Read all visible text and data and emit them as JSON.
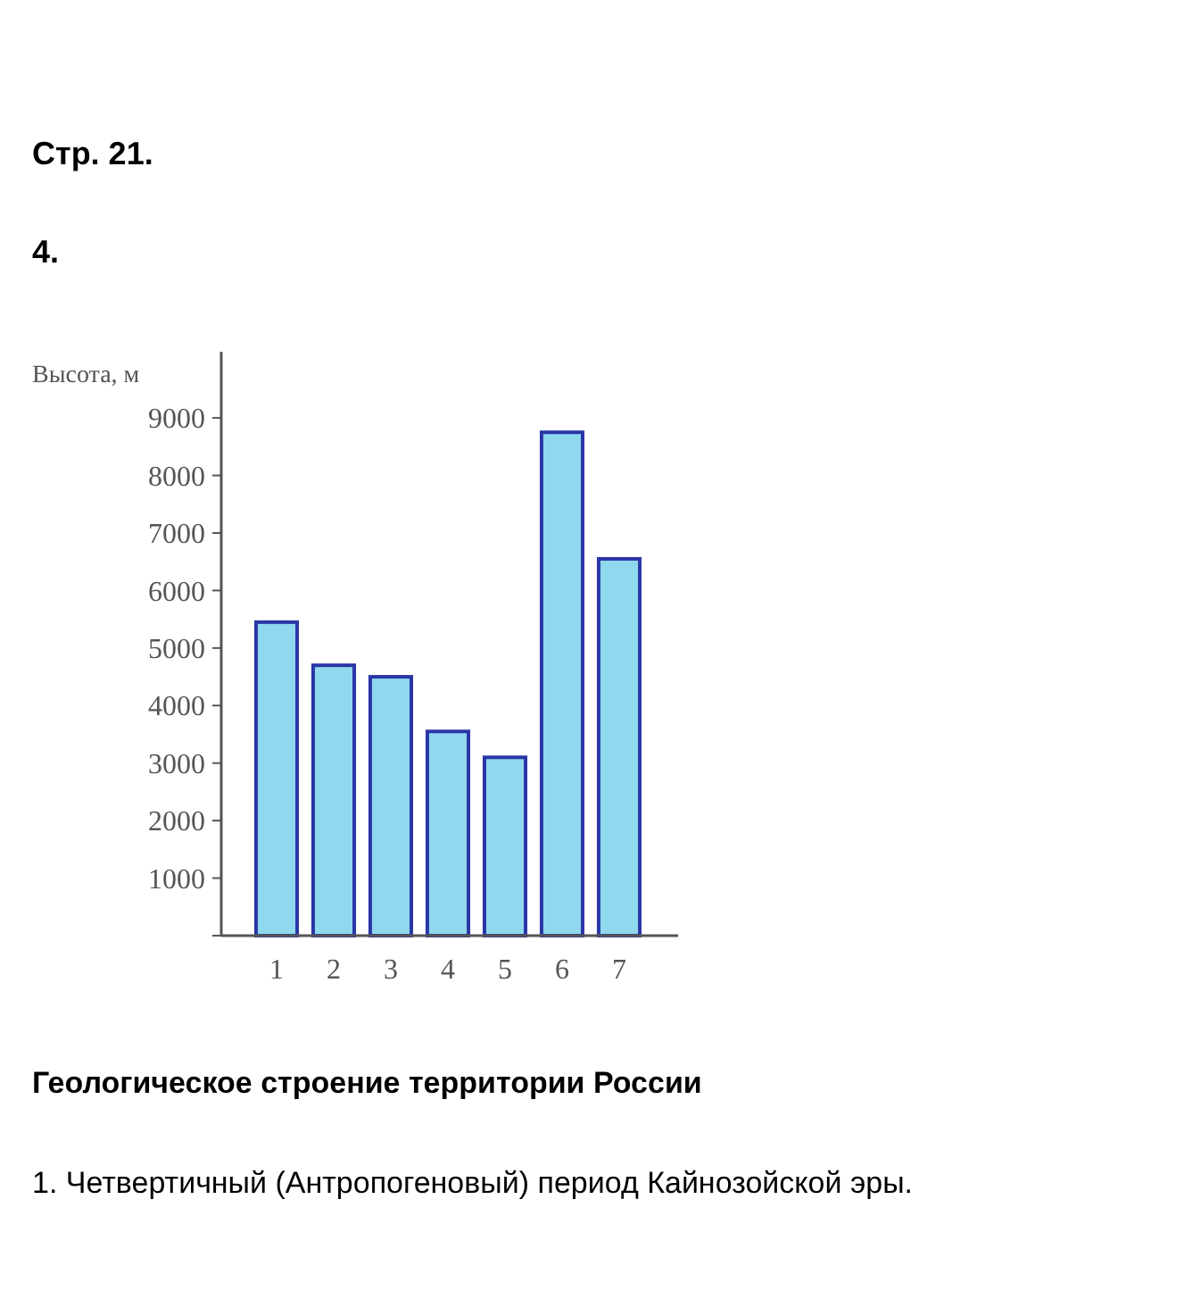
{
  "chart_data": {
    "type": "bar",
    "title": "Стр. 21.",
    "subtitle": "4.",
    "ylabel": "Высота, м",
    "categories": [
      "1",
      "2",
      "3",
      "4",
      "5",
      "6",
      "7"
    ],
    "values": [
      5450,
      4700,
      4500,
      3550,
      3100,
      8750,
      6550
    ],
    "color": "#8fd8ee",
    "ylim": [
      0,
      10150
    ],
    "yticks": [
      {
        "value": 0,
        "label": null
      },
      1000,
      2000,
      3000,
      4000,
      5000,
      6000,
      7000,
      8000,
      9000
    ],
    "grid": false,
    "annotations": [
      "Геологическое строение территории России",
      "1. Четвертичный (Антропогеновый) период Кайнозойской эры."
    ]
  }
}
